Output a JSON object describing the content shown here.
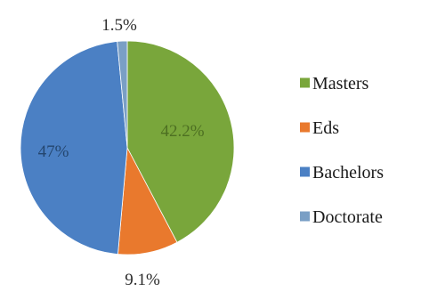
{
  "chart_data": {
    "type": "pie",
    "categories": [
      "Masters",
      "Eds",
      "Bachelors",
      "Doctorate"
    ],
    "values": [
      42.2,
      9.1,
      47,
      1.5
    ],
    "data_labels": [
      "42.2%",
      "9.1%",
      "47%",
      "1.5%"
    ],
    "colors": [
      "#79a63b",
      "#e9792d",
      "#4b80c4",
      "#7a9fc5"
    ],
    "legend": {
      "placement": "right",
      "entries": [
        "Masters",
        "Eds",
        "Bachelors",
        "Doctorate"
      ]
    },
    "title": "",
    "xlabel": "",
    "ylabel": ""
  }
}
